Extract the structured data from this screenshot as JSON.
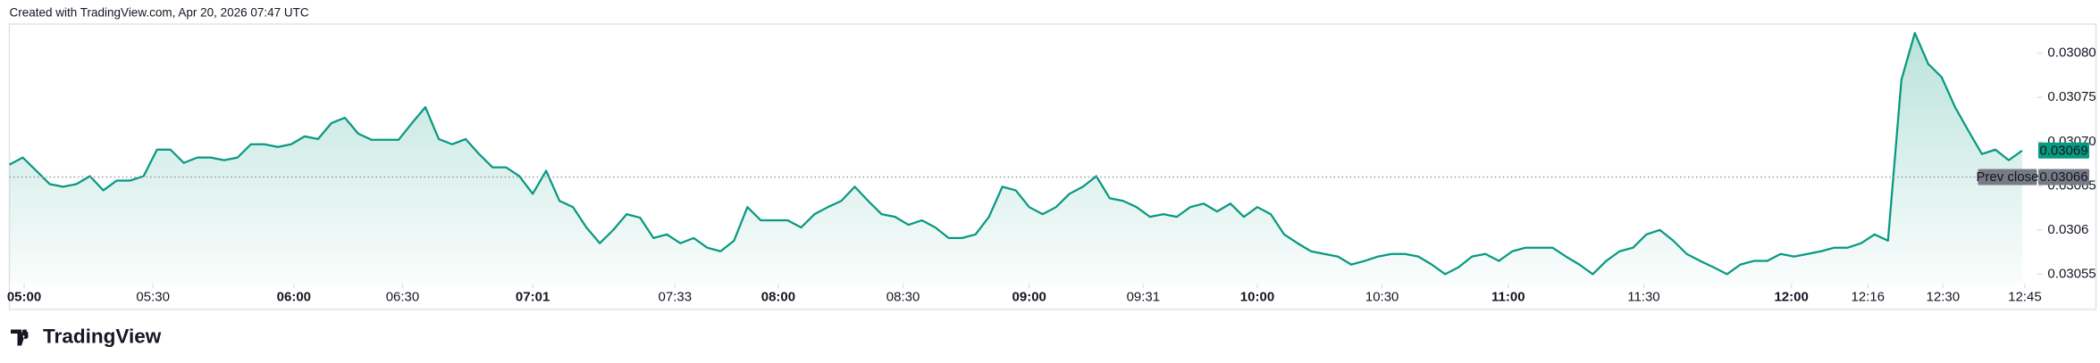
{
  "header": {
    "text": "Created with TradingView.com, Apr 20, 2026 07:47 UTC"
  },
  "footer": {
    "brand": "TradingView"
  },
  "chart_data": {
    "type": "line",
    "color": "#089981",
    "values": [
      0.030674,
      0.030682,
      0.030667,
      0.030652,
      0.030649,
      0.030652,
      0.030661,
      0.030645,
      0.030656,
      0.030656,
      0.030661,
      0.030691,
      0.030691,
      0.030676,
      0.030682,
      0.030682,
      0.030679,
      0.030682,
      0.030697,
      0.030697,
      0.030694,
      0.030697,
      0.030706,
      0.030703,
      0.030721,
      0.030727,
      0.030709,
      0.030702,
      0.030702,
      0.030702,
      0.030721,
      0.030739,
      0.030703,
      0.030697,
      0.030703,
      0.030686,
      0.030671,
      0.030671,
      0.030661,
      0.030641,
      0.030667,
      0.030633,
      0.030626,
      0.030603,
      0.030585,
      0.0306,
      0.030618,
      0.030614,
      0.030591,
      0.030595,
      0.030585,
      0.030591,
      0.03058,
      0.030576,
      0.030588,
      0.030626,
      0.030611,
      0.030611,
      0.030611,
      0.030603,
      0.030618,
      0.030626,
      0.030633,
      0.030649,
      0.030633,
      0.030618,
      0.030615,
      0.030606,
      0.030611,
      0.030603,
      0.030591,
      0.030591,
      0.030595,
      0.030615,
      0.030649,
      0.030645,
      0.030626,
      0.030618,
      0.030626,
      0.030641,
      0.030649,
      0.030661,
      0.030636,
      0.030633,
      0.030626,
      0.030615,
      0.030618,
      0.030615,
      0.030626,
      0.03063,
      0.030621,
      0.03063,
      0.030615,
      0.030626,
      0.030618,
      0.030595,
      0.030585,
      0.030576,
      0.030573,
      0.03057,
      0.030561,
      0.030565,
      0.03057,
      0.030573,
      0.030573,
      0.03057,
      0.030561,
      0.03055,
      0.030558,
      0.03057,
      0.030573,
      0.030565,
      0.030576,
      0.03058,
      0.03058,
      0.03058,
      0.03057,
      0.030561,
      0.03055,
      0.030565,
      0.030576,
      0.03058,
      0.030595,
      0.0306,
      0.030588,
      0.030573,
      0.030565,
      0.030558,
      0.03055,
      0.030561,
      0.030565,
      0.030565,
      0.030573,
      0.03057,
      0.030573,
      0.030576,
      0.03058,
      0.03058,
      0.030585,
      0.030595,
      0.030588,
      0.03077,
      0.030823,
      0.030788,
      0.030773,
      0.030739,
      0.030712,
      0.030686,
      0.030691,
      0.030679,
      0.03069
    ],
    "xlim": [
      0,
      151.1
    ],
    "xticks": [
      {
        "value": 1.1,
        "label": "05:00",
        "bold": true
      },
      {
        "value": 10.7,
        "label": "05:30"
      },
      {
        "value": 21.2,
        "label": "06:00",
        "bold": true
      },
      {
        "value": 29.3,
        "label": "06:30"
      },
      {
        "value": 39,
        "label": "07:01",
        "bold": true
      },
      {
        "value": 49.6,
        "label": "07:33"
      },
      {
        "value": 57.3,
        "label": "08:00",
        "bold": true
      },
      {
        "value": 66.6,
        "label": "08:30"
      },
      {
        "value": 76,
        "label": "09:00",
        "bold": true
      },
      {
        "value": 84.5,
        "label": "09:31"
      },
      {
        "value": 93,
        "label": "10:00",
        "bold": true
      },
      {
        "value": 102.3,
        "label": "10:30"
      },
      {
        "value": 111.7,
        "label": "11:00",
        "bold": true
      },
      {
        "value": 121.8,
        "label": "11:30"
      },
      {
        "value": 132.8,
        "label": "12:00",
        "bold": true
      },
      {
        "value": 138.5,
        "label": "12:16"
      },
      {
        "value": 144.1,
        "label": "12:30"
      },
      {
        "value": 150.2,
        "label": "12:45"
      }
    ],
    "ylim": [
      0.030539,
      0.030833
    ],
    "yticks": [
      {
        "value": 0.03055,
        "label": "0.03055"
      },
      0.0306,
      {
        "value": 0.03065,
        "label": "0.03065"
      },
      {
        "value": 0.0307,
        "label": "0.03070"
      },
      {
        "value": 0.03075,
        "label": "0.03075"
      },
      {
        "value": 0.0308,
        "label": "0.03080"
      }
    ],
    "prev_close": {
      "label": "Prev close",
      "value": 0.03066
    },
    "last_price": 0.03069
  }
}
